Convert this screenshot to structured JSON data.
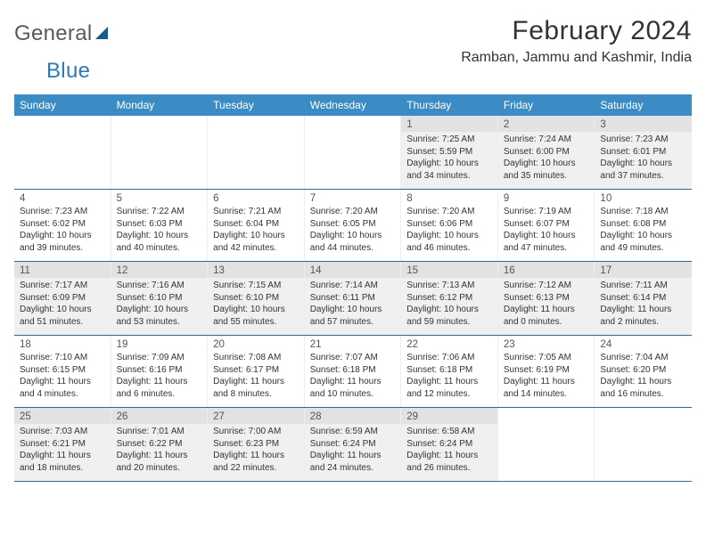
{
  "logo": {
    "text1": "General",
    "text2": "Blue"
  },
  "title": "February 2024",
  "location": "Ramban, Jammu and Kashmir, India",
  "colors": {
    "header_bg": "#3b8bc4",
    "border": "#2a6a9a",
    "shade_bg": "#f0f0f0",
    "daynum_shade_bg": "#e2e2e2",
    "text": "#333333",
    "logo_gray": "#5a5a5a",
    "logo_blue": "#2a7ab8"
  },
  "dayNames": [
    "Sunday",
    "Monday",
    "Tuesday",
    "Wednesday",
    "Thursday",
    "Friday",
    "Saturday"
  ],
  "weeks": [
    [
      null,
      null,
      null,
      null,
      {
        "n": "1",
        "sr": "7:25 AM",
        "ss": "5:59 PM",
        "dl": "10 hours and 34 minutes."
      },
      {
        "n": "2",
        "sr": "7:24 AM",
        "ss": "6:00 PM",
        "dl": "10 hours and 35 minutes."
      },
      {
        "n": "3",
        "sr": "7:23 AM",
        "ss": "6:01 PM",
        "dl": "10 hours and 37 minutes."
      }
    ],
    [
      {
        "n": "4",
        "sr": "7:23 AM",
        "ss": "6:02 PM",
        "dl": "10 hours and 39 minutes."
      },
      {
        "n": "5",
        "sr": "7:22 AM",
        "ss": "6:03 PM",
        "dl": "10 hours and 40 minutes."
      },
      {
        "n": "6",
        "sr": "7:21 AM",
        "ss": "6:04 PM",
        "dl": "10 hours and 42 minutes."
      },
      {
        "n": "7",
        "sr": "7:20 AM",
        "ss": "6:05 PM",
        "dl": "10 hours and 44 minutes."
      },
      {
        "n": "8",
        "sr": "7:20 AM",
        "ss": "6:06 PM",
        "dl": "10 hours and 46 minutes."
      },
      {
        "n": "9",
        "sr": "7:19 AM",
        "ss": "6:07 PM",
        "dl": "10 hours and 47 minutes."
      },
      {
        "n": "10",
        "sr": "7:18 AM",
        "ss": "6:08 PM",
        "dl": "10 hours and 49 minutes."
      }
    ],
    [
      {
        "n": "11",
        "sr": "7:17 AM",
        "ss": "6:09 PM",
        "dl": "10 hours and 51 minutes."
      },
      {
        "n": "12",
        "sr": "7:16 AM",
        "ss": "6:10 PM",
        "dl": "10 hours and 53 minutes."
      },
      {
        "n": "13",
        "sr": "7:15 AM",
        "ss": "6:10 PM",
        "dl": "10 hours and 55 minutes."
      },
      {
        "n": "14",
        "sr": "7:14 AM",
        "ss": "6:11 PM",
        "dl": "10 hours and 57 minutes."
      },
      {
        "n": "15",
        "sr": "7:13 AM",
        "ss": "6:12 PM",
        "dl": "10 hours and 59 minutes."
      },
      {
        "n": "16",
        "sr": "7:12 AM",
        "ss": "6:13 PM",
        "dl": "11 hours and 0 minutes."
      },
      {
        "n": "17",
        "sr": "7:11 AM",
        "ss": "6:14 PM",
        "dl": "11 hours and 2 minutes."
      }
    ],
    [
      {
        "n": "18",
        "sr": "7:10 AM",
        "ss": "6:15 PM",
        "dl": "11 hours and 4 minutes."
      },
      {
        "n": "19",
        "sr": "7:09 AM",
        "ss": "6:16 PM",
        "dl": "11 hours and 6 minutes."
      },
      {
        "n": "20",
        "sr": "7:08 AM",
        "ss": "6:17 PM",
        "dl": "11 hours and 8 minutes."
      },
      {
        "n": "21",
        "sr": "7:07 AM",
        "ss": "6:18 PM",
        "dl": "11 hours and 10 minutes."
      },
      {
        "n": "22",
        "sr": "7:06 AM",
        "ss": "6:18 PM",
        "dl": "11 hours and 12 minutes."
      },
      {
        "n": "23",
        "sr": "7:05 AM",
        "ss": "6:19 PM",
        "dl": "11 hours and 14 minutes."
      },
      {
        "n": "24",
        "sr": "7:04 AM",
        "ss": "6:20 PM",
        "dl": "11 hours and 16 minutes."
      }
    ],
    [
      {
        "n": "25",
        "sr": "7:03 AM",
        "ss": "6:21 PM",
        "dl": "11 hours and 18 minutes."
      },
      {
        "n": "26",
        "sr": "7:01 AM",
        "ss": "6:22 PM",
        "dl": "11 hours and 20 minutes."
      },
      {
        "n": "27",
        "sr": "7:00 AM",
        "ss": "6:23 PM",
        "dl": "11 hours and 22 minutes."
      },
      {
        "n": "28",
        "sr": "6:59 AM",
        "ss": "6:24 PM",
        "dl": "11 hours and 24 minutes."
      },
      {
        "n": "29",
        "sr": "6:58 AM",
        "ss": "6:24 PM",
        "dl": "11 hours and 26 minutes."
      },
      null,
      null
    ]
  ],
  "labels": {
    "sunrise": "Sunrise:",
    "sunset": "Sunset:",
    "daylight": "Daylight:"
  }
}
